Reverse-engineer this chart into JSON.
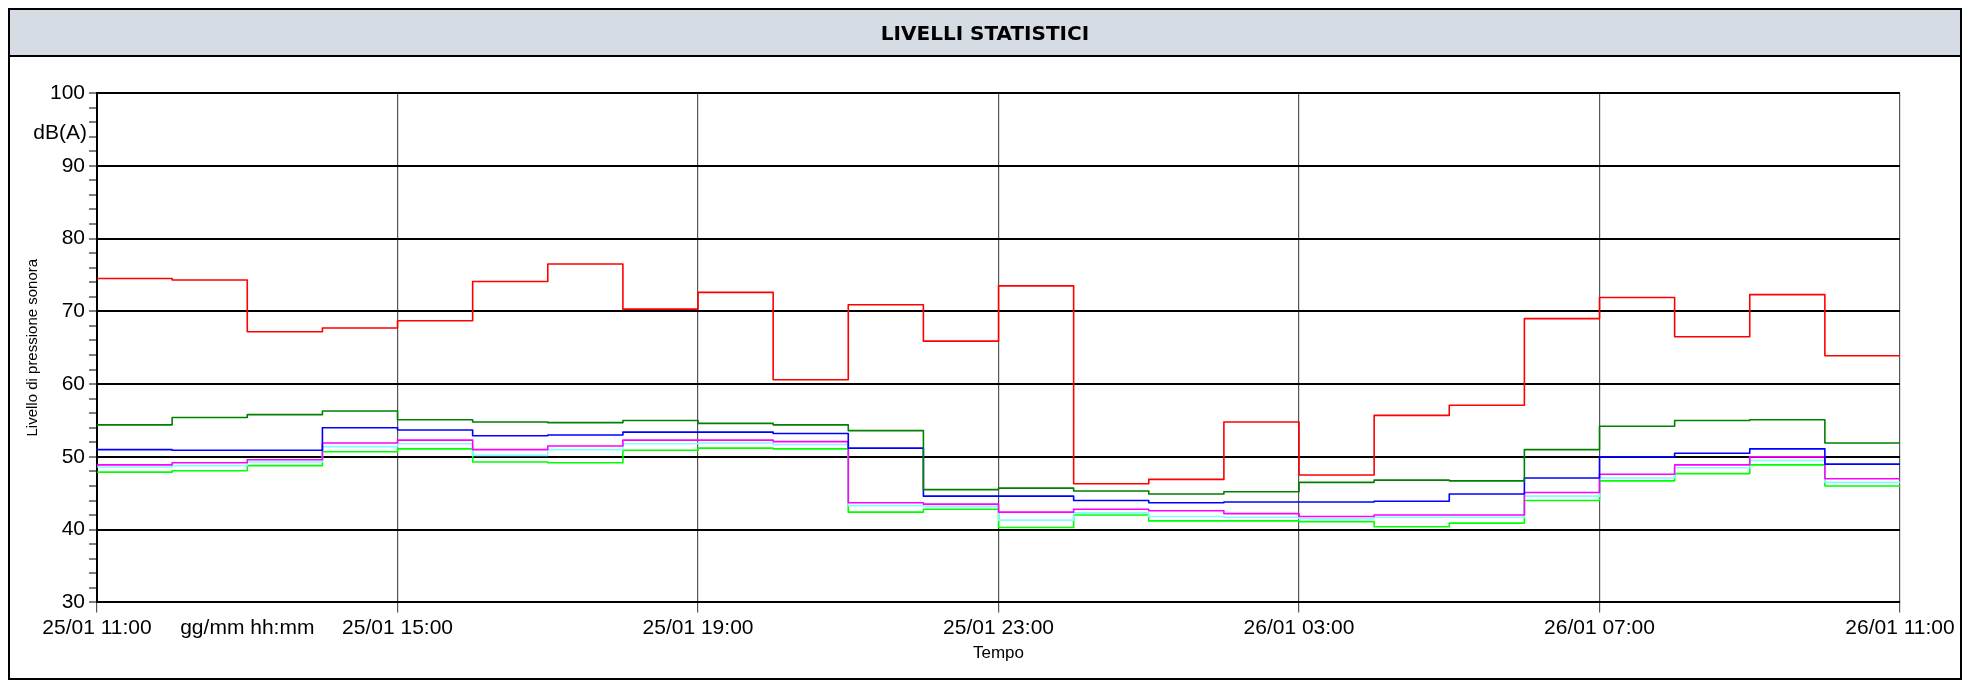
{
  "chart_data": {
    "type": "step",
    "title": "LIVELLI STATISTICI",
    "xlabel": "Tempo",
    "ylabel": "Livello di pressione sonora",
    "annotations": [
      "dB(A)",
      "gg/mm hh:mm"
    ],
    "x": [
      "--01-25T11:00",
      "--01-25T12:00",
      "--01-25T13:00",
      "--01-25T14:00",
      "--01-25T15:00",
      "--01-25T16:00",
      "--01-25T17:00",
      "--01-25T18:00",
      "--01-25T19:00",
      "--01-25T20:00",
      "--01-25T21:00",
      "--01-25T22:00",
      "--01-25T23:00",
      "--01-26T00:00",
      "--01-26T01:00",
      "--01-26T02:00",
      "--01-26T03:00",
      "--01-26T04:00",
      "--01-26T05:00",
      "--01-26T06:00",
      "--01-26T07:00",
      "--01-26T08:00",
      "--01-26T09:00",
      "--01-26T10:00",
      "--01-26T11:00"
    ],
    "xlim": [
      "--01-25T11:00",
      "--01-26T11:00"
    ],
    "xticks": [
      {
        "value": "--01-25T11:00",
        "label": "25/01 11:00"
      },
      {
        "value": "--01-25T15:00",
        "label": "25/01 15:00"
      },
      {
        "value": "--01-25T19:00",
        "label": "25/01 19:00"
      },
      {
        "value": "--01-25T23:00",
        "label": "25/01 23:00"
      },
      {
        "value": "--01-26T03:00",
        "label": "26/01 03:00"
      },
      {
        "value": "--01-26T07:00",
        "label": "26/01 07:00"
      },
      {
        "value": "--01-26T11:00",
        "label": "26/01 11:00"
      }
    ],
    "ylim": [
      30,
      100
    ],
    "yticks": [
      30,
      {
        "value": 32,
        "label": null
      },
      {
        "value": 34,
        "label": null
      },
      {
        "value": 36,
        "label": null
      },
      {
        "value": 38,
        "label": null
      },
      40,
      {
        "value": 42,
        "label": null
      },
      {
        "value": 44,
        "label": null
      },
      {
        "value": 46,
        "label": null
      },
      {
        "value": 48,
        "label": null
      },
      50,
      {
        "value": 52,
        "label": null
      },
      {
        "value": 54,
        "label": null
      },
      {
        "value": 56,
        "label": null
      },
      {
        "value": 58,
        "label": null
      },
      60,
      {
        "value": 62,
        "label": null
      },
      {
        "value": 64,
        "label": null
      },
      {
        "value": 66,
        "label": null
      },
      {
        "value": 68,
        "label": null
      },
      70,
      {
        "value": 72,
        "label": null
      },
      {
        "value": 74,
        "label": null
      },
      {
        "value": 76,
        "label": null
      },
      {
        "value": 78,
        "label": null
      },
      80,
      {
        "value": 82,
        "label": null
      },
      {
        "value": 84,
        "label": null
      },
      {
        "value": 86,
        "label": null
      },
      {
        "value": 88,
        "label": null
      },
      90,
      {
        "value": 92,
        "label": null
      },
      {
        "value": 94,
        "label": null
      },
      {
        "value": 96,
        "label": null
      },
      {
        "value": 98,
        "label": null
      },
      100
    ],
    "grid": true,
    "series": [
      {
        "color": "#ff0000",
        "values": [
          74.5,
          74.3,
          67.2,
          67.7,
          68.7,
          74.1,
          76.5,
          70.3,
          72.6,
          60.6,
          70.9,
          65.9,
          73.5,
          46.3,
          46.9,
          54.8,
          47.5,
          55.7,
          57.1,
          69.0,
          71.9,
          66.5,
          72.3,
          63.9,
          63.9
        ]
      },
      {
        "color": "#008000",
        "values": [
          54.4,
          55.4,
          55.8,
          56.3,
          55.1,
          54.8,
          54.7,
          55.0,
          54.6,
          54.4,
          53.6,
          45.5,
          45.7,
          45.3,
          44.9,
          45.2,
          46.5,
          46.8,
          46.7,
          51.0,
          54.2,
          55.0,
          55.1,
          51.9,
          51.9
        ]
      },
      {
        "color": "#0000ff",
        "values": [
          51.0,
          50.9,
          50.9,
          54.0,
          53.7,
          52.9,
          53.0,
          53.4,
          53.4,
          53.2,
          51.2,
          44.6,
          44.6,
          44.0,
          43.7,
          43.8,
          43.8,
          43.9,
          44.9,
          47.1,
          50.0,
          50.5,
          51.1,
          49.0,
          49.0
        ]
      },
      {
        "color": "#ff00ff",
        "values": [
          48.9,
          49.2,
          49.6,
          51.9,
          52.3,
          51.0,
          51.5,
          52.3,
          52.3,
          52.1,
          43.7,
          43.5,
          42.4,
          42.8,
          42.6,
          42.2,
          41.8,
          42.0,
          42.0,
          45.1,
          47.6,
          48.9,
          50.0,
          47.0,
          47.0
        ]
      },
      {
        "color": "#80ffff",
        "values": [
          48.6,
          48.8,
          49.3,
          51.4,
          51.8,
          50.2,
          51.0,
          51.8,
          51.9,
          51.7,
          43.3,
          43.2,
          41.3,
          42.3,
          41.8,
          41.7,
          41.5,
          41.7,
          41.7,
          44.6,
          47.1,
          48.5,
          49.5,
          46.5,
          46.5
        ]
      },
      {
        "color": "#00ff00",
        "values": [
          47.9,
          48.1,
          48.8,
          50.7,
          51.1,
          49.3,
          49.2,
          50.9,
          51.2,
          51.1,
          42.4,
          42.8,
          40.3,
          42.0,
          41.2,
          41.2,
          41.1,
          40.4,
          40.9,
          44.0,
          46.7,
          47.7,
          48.9,
          46.0,
          46.0
        ]
      }
    ]
  }
}
